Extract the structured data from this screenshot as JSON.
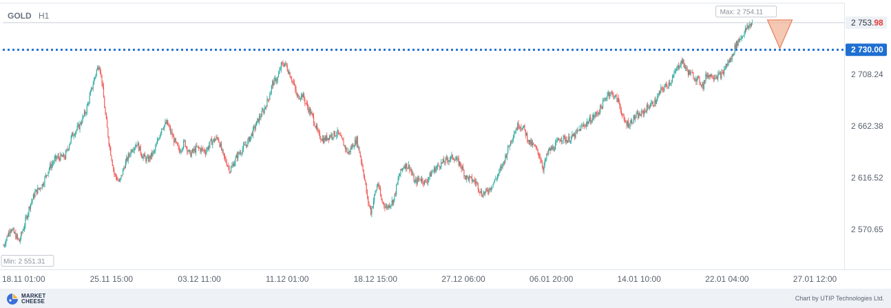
{
  "header": {
    "symbol": "GOLD",
    "timeframe": "H1"
  },
  "footer": {
    "brand_line1": "MARKET",
    "brand_line2": "CHEESE",
    "credit": "Chart by UTIP Technologies Ltd."
  },
  "chart_data": {
    "type": "candlestick",
    "instrument": "GOLD",
    "timeframe": "H1",
    "ylim": [
      2540,
      2768
    ],
    "y_ticks": [
      "2 570.65",
      "2 616.52",
      "2 662.38",
      "2 708.24"
    ],
    "x_ticks": [
      "18.11 01:00",
      "25.11 15:00",
      "03.12 11:00",
      "11.12 01:00",
      "18.12 15:00",
      "27.12 06:00",
      "06.01 20:00",
      "14.01 10:00",
      "22.01 04:00",
      "27.01 12:00"
    ],
    "x_tick_positions": [
      0,
      100,
      200,
      300,
      400,
      500,
      600,
      700,
      800,
      900
    ],
    "current_price": {
      "value": 2753.98,
      "label_main": "2 753.",
      "label_accent": "98"
    },
    "level_line": {
      "value": 2730.0,
      "label": "2 730.00"
    },
    "max_label": {
      "value": 2754.11,
      "text": "Max: 2 754.11"
    },
    "min_label": {
      "value": 2551.31,
      "text": "Min: 2 551.31"
    },
    "signal": {
      "direction": "down",
      "color": "#f2b599"
    },
    "colors": {
      "up": "#26a69a",
      "down": "#ef5350",
      "level": "#1f6fd1",
      "accent": "#e53935"
    },
    "series": [
      {
        "t": 0,
        "v": 2556
      },
      {
        "t": 8,
        "v": 2572
      },
      {
        "t": 13,
        "v": 2566
      },
      {
        "t": 18,
        "v": 2560
      },
      {
        "t": 24,
        "v": 2575
      },
      {
        "t": 30,
        "v": 2592
      },
      {
        "t": 36,
        "v": 2603
      },
      {
        "t": 44,
        "v": 2610
      },
      {
        "t": 52,
        "v": 2625
      },
      {
        "t": 60,
        "v": 2634
      },
      {
        "t": 70,
        "v": 2635
      },
      {
        "t": 78,
        "v": 2654
      },
      {
        "t": 86,
        "v": 2662
      },
      {
        "t": 94,
        "v": 2676
      },
      {
        "t": 101,
        "v": 2697
      },
      {
        "t": 106,
        "v": 2712
      },
      {
        "t": 109,
        "v": 2717
      },
      {
        "t": 112,
        "v": 2702
      },
      {
        "t": 116,
        "v": 2672
      },
      {
        "t": 120,
        "v": 2648
      },
      {
        "t": 126,
        "v": 2620
      },
      {
        "t": 132,
        "v": 2612
      },
      {
        "t": 138,
        "v": 2628
      },
      {
        "t": 146,
        "v": 2642
      },
      {
        "t": 152,
        "v": 2647
      },
      {
        "t": 158,
        "v": 2636
      },
      {
        "t": 164,
        "v": 2632
      },
      {
        "t": 172,
        "v": 2640
      },
      {
        "t": 180,
        "v": 2661
      },
      {
        "t": 186,
        "v": 2665
      },
      {
        "t": 194,
        "v": 2650
      },
      {
        "t": 200,
        "v": 2640
      },
      {
        "t": 206,
        "v": 2648
      },
      {
        "t": 212,
        "v": 2637
      },
      {
        "t": 220,
        "v": 2643
      },
      {
        "t": 230,
        "v": 2640
      },
      {
        "t": 236,
        "v": 2648
      },
      {
        "t": 244,
        "v": 2652
      },
      {
        "t": 250,
        "v": 2636
      },
      {
        "t": 258,
        "v": 2623
      },
      {
        "t": 266,
        "v": 2636
      },
      {
        "t": 272,
        "v": 2642
      },
      {
        "t": 278,
        "v": 2648
      },
      {
        "t": 284,
        "v": 2658
      },
      {
        "t": 290,
        "v": 2668
      },
      {
        "t": 296,
        "v": 2676
      },
      {
        "t": 302,
        "v": 2688
      },
      {
        "t": 306,
        "v": 2700
      },
      {
        "t": 312,
        "v": 2705
      },
      {
        "t": 316,
        "v": 2716
      },
      {
        "t": 320,
        "v": 2718
      },
      {
        "t": 325,
        "v": 2710
      },
      {
        "t": 330,
        "v": 2700
      },
      {
        "t": 334,
        "v": 2688
      },
      {
        "t": 340,
        "v": 2690
      },
      {
        "t": 346,
        "v": 2679
      },
      {
        "t": 352,
        "v": 2670
      },
      {
        "t": 358,
        "v": 2655
      },
      {
        "t": 364,
        "v": 2650
      },
      {
        "t": 372,
        "v": 2654
      },
      {
        "t": 380,
        "v": 2656
      },
      {
        "t": 386,
        "v": 2648
      },
      {
        "t": 392,
        "v": 2638
      },
      {
        "t": 398,
        "v": 2646
      },
      {
        "t": 402,
        "v": 2650
      },
      {
        "t": 406,
        "v": 2636
      },
      {
        "t": 410,
        "v": 2620
      },
      {
        "t": 414,
        "v": 2598
      },
      {
        "t": 418,
        "v": 2586
      },
      {
        "t": 422,
        "v": 2600
      },
      {
        "t": 426,
        "v": 2612
      },
      {
        "t": 430,
        "v": 2596
      },
      {
        "t": 436,
        "v": 2590
      },
      {
        "t": 444,
        "v": 2597
      },
      {
        "t": 450,
        "v": 2618
      },
      {
        "t": 456,
        "v": 2628
      },
      {
        "t": 462,
        "v": 2626
      },
      {
        "t": 468,
        "v": 2612
      },
      {
        "t": 474,
        "v": 2616
      },
      {
        "t": 480,
        "v": 2612
      },
      {
        "t": 488,
        "v": 2622
      },
      {
        "t": 496,
        "v": 2628
      },
      {
        "t": 504,
        "v": 2632
      },
      {
        "t": 512,
        "v": 2635
      },
      {
        "t": 520,
        "v": 2628
      },
      {
        "t": 526,
        "v": 2617
      },
      {
        "t": 532,
        "v": 2615
      },
      {
        "t": 538,
        "v": 2612
      },
      {
        "t": 544,
        "v": 2602
      },
      {
        "t": 550,
        "v": 2604
      },
      {
        "t": 556,
        "v": 2610
      },
      {
        "t": 562,
        "v": 2618
      },
      {
        "t": 568,
        "v": 2628
      },
      {
        "t": 574,
        "v": 2642
      },
      {
        "t": 580,
        "v": 2655
      },
      {
        "t": 586,
        "v": 2664
      },
      {
        "t": 592,
        "v": 2660
      },
      {
        "t": 598,
        "v": 2648
      },
      {
        "t": 604,
        "v": 2644
      },
      {
        "t": 610,
        "v": 2636
      },
      {
        "t": 614,
        "v": 2625
      },
      {
        "t": 620,
        "v": 2640
      },
      {
        "t": 626,
        "v": 2643
      },
      {
        "t": 634,
        "v": 2652
      },
      {
        "t": 642,
        "v": 2650
      },
      {
        "t": 650,
        "v": 2654
      },
      {
        "t": 656,
        "v": 2660
      },
      {
        "t": 662,
        "v": 2664
      },
      {
        "t": 668,
        "v": 2668
      },
      {
        "t": 676,
        "v": 2674
      },
      {
        "t": 682,
        "v": 2682
      },
      {
        "t": 688,
        "v": 2692
      },
      {
        "t": 694,
        "v": 2690
      },
      {
        "t": 700,
        "v": 2684
      },
      {
        "t": 706,
        "v": 2666
      },
      {
        "t": 712,
        "v": 2664
      },
      {
        "t": 718,
        "v": 2670
      },
      {
        "t": 726,
        "v": 2673
      },
      {
        "t": 734,
        "v": 2680
      },
      {
        "t": 742,
        "v": 2684
      },
      {
        "t": 748,
        "v": 2694
      },
      {
        "t": 754,
        "v": 2698
      },
      {
        "t": 760,
        "v": 2703
      },
      {
        "t": 768,
        "v": 2716
      },
      {
        "t": 772,
        "v": 2720
      },
      {
        "t": 778,
        "v": 2711
      },
      {
        "t": 786,
        "v": 2706
      },
      {
        "t": 792,
        "v": 2702
      },
      {
        "t": 796,
        "v": 2698
      },
      {
        "t": 800,
        "v": 2708
      },
      {
        "t": 806,
        "v": 2707
      },
      {
        "t": 812,
        "v": 2707
      },
      {
        "t": 818,
        "v": 2708
      },
      {
        "t": 822,
        "v": 2716
      },
      {
        "t": 828,
        "v": 2722
      },
      {
        "t": 832,
        "v": 2732
      },
      {
        "t": 836,
        "v": 2738
      },
      {
        "t": 840,
        "v": 2742
      },
      {
        "t": 844,
        "v": 2747
      },
      {
        "t": 848,
        "v": 2751
      },
      {
        "t": 852,
        "v": 2754
      }
    ]
  }
}
